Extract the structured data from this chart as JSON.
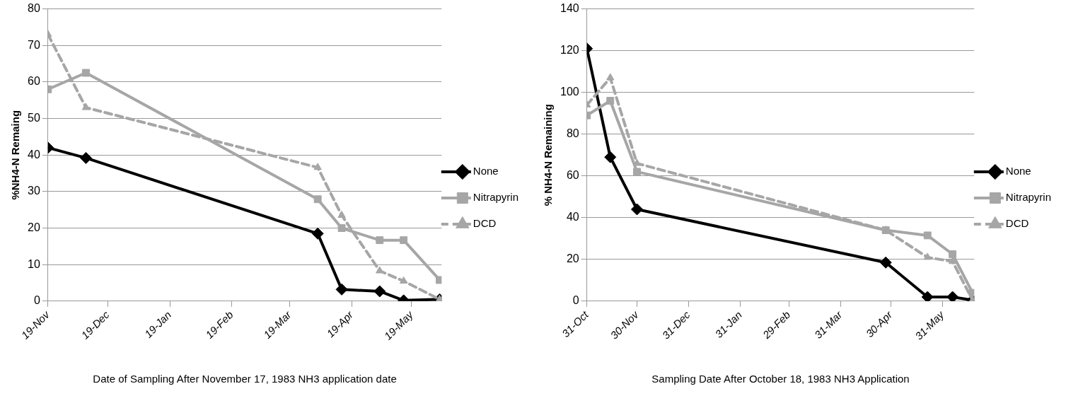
{
  "chart_data": [
    {
      "type": "line",
      "xlabel": "Date of Sampling After November 17, 1983 NH3 application date",
      "ylabel": "%NH4-N Remaing",
      "x": [
        "1983-11-19",
        "1983-12-08",
        "1984-04-02",
        "1984-04-14",
        "1984-05-03",
        "1984-05-15",
        "1984-06-02"
      ],
      "series": [
        {
          "name": "None",
          "color": "#000000",
          "marker": "diamond",
          "line_style": "solid",
          "values": [
            42,
            39.2,
            18.5,
            3.2,
            2.7,
            0.2,
            0.5
          ]
        },
        {
          "name": "Nitrapyrin",
          "color": "#a6a6a6",
          "marker": "square",
          "line_style": "solid",
          "values": [
            58,
            62.5,
            27.9,
            20,
            16.7,
            16.7,
            5.8
          ]
        },
        {
          "name": "DCD",
          "color": "#a6a6a6",
          "marker": "triangle",
          "line_style": "dashed",
          "values": [
            73,
            53,
            36.6,
            23.5,
            8.3,
            5.5,
            0.5
          ]
        }
      ],
      "xlim": [
        "1983-11-19",
        "1984-06-03"
      ],
      "xticks": [
        {
          "value": "1983-11-19",
          "label": "19-Nov"
        },
        {
          "value": "1983-12-19",
          "label": "19-Dec"
        },
        {
          "value": "1984-01-19",
          "label": "19-Jan"
        },
        {
          "value": "1984-02-19",
          "label": "19-Feb"
        },
        {
          "value": "1984-03-19",
          "label": "19-Mar"
        },
        {
          "value": "1984-04-19",
          "label": "19-Apr"
        },
        {
          "value": "1984-05-19",
          "label": "19-May"
        }
      ],
      "ylim": [
        0,
        80
      ],
      "yticks": [
        0,
        10,
        20,
        30,
        40,
        50,
        60,
        70,
        80
      ],
      "grid": "y",
      "legend": "right"
    },
    {
      "type": "line",
      "xlabel": "Sampling Date After October 18, 1983 NH3 Application",
      "ylabel": "% NH4-N Remaining",
      "x": [
        "1983-10-31",
        "1983-11-14",
        "1983-11-30",
        "1984-04-27",
        "1984-05-22",
        "1984-06-06",
        "1984-06-18"
      ],
      "series": [
        {
          "name": "None",
          "color": "#000000",
          "marker": "diamond",
          "line_style": "solid",
          "values": [
            121,
            69,
            44,
            18.5,
            2,
            2,
            0.5
          ]
        },
        {
          "name": "Nitrapyrin",
          "color": "#a6a6a6",
          "marker": "square",
          "line_style": "solid",
          "values": [
            89,
            96,
            62,
            34,
            31.5,
            22.5,
            4
          ]
        },
        {
          "name": "DCD",
          "color": "#a6a6a6",
          "marker": "triangle",
          "line_style": "dashed",
          "values": [
            94,
            107,
            66,
            34,
            21,
            19,
            0.5
          ]
        }
      ],
      "xlim": [
        "1983-10-31",
        "1984-06-19"
      ],
      "xticks": [
        {
          "value": "1983-10-31",
          "label": "31-Oct"
        },
        {
          "value": "1983-11-30",
          "label": "30-Nov"
        },
        {
          "value": "1983-12-31",
          "label": "31-Dec"
        },
        {
          "value": "1984-01-31",
          "label": "31-Jan"
        },
        {
          "value": "1984-02-29",
          "label": "29-Feb"
        },
        {
          "value": "1984-03-31",
          "label": "31-Mar"
        },
        {
          "value": "1984-04-30",
          "label": "30-Apr"
        },
        {
          "value": "1984-05-31",
          "label": "31-May"
        }
      ],
      "ylim": [
        0,
        140
      ],
      "yticks": [
        0,
        20,
        40,
        60,
        80,
        100,
        120,
        140
      ],
      "grid": "y",
      "legend": "right"
    }
  ]
}
